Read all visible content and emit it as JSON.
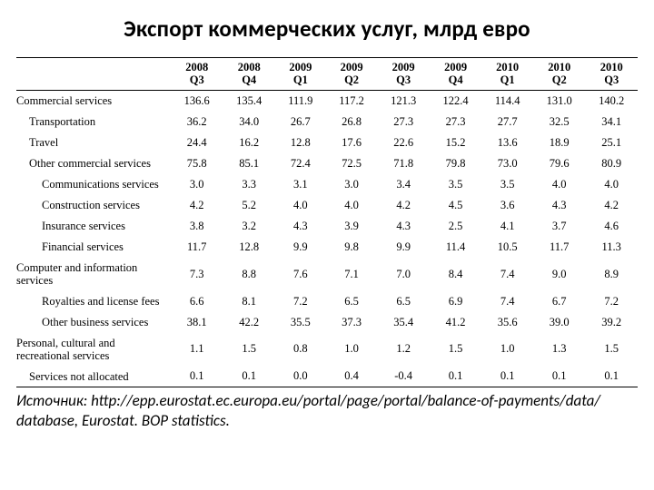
{
  "title": "Экспорт коммерческих услуг, млрд евро",
  "columns": [
    {
      "year": "2008",
      "q": "Q3"
    },
    {
      "year": "2008",
      "q": "Q4"
    },
    {
      "year": "2009",
      "q": "Q1"
    },
    {
      "year": "2009",
      "q": "Q2"
    },
    {
      "year": "2009",
      "q": "Q3"
    },
    {
      "year": "2009",
      "q": "Q4"
    },
    {
      "year": "2010",
      "q": "Q1"
    },
    {
      "year": "2010",
      "q": "Q2"
    },
    {
      "year": "2010",
      "q": "Q3"
    }
  ],
  "rows": [
    {
      "label": "Commercial services",
      "indent": 0,
      "vals": [
        "136.6",
        "135.4",
        "111.9",
        "117.2",
        "121.3",
        "122.4",
        "114.4",
        "131.0",
        "140.2"
      ]
    },
    {
      "label": "Transportation",
      "indent": 1,
      "vals": [
        "36.2",
        "34.0",
        "26.7",
        "26.8",
        "27.3",
        "27.3",
        "27.7",
        "32.5",
        "34.1"
      ]
    },
    {
      "label": "Travel",
      "indent": 1,
      "vals": [
        "24.4",
        "16.2",
        "12.8",
        "17.6",
        "22.6",
        "15.2",
        "13.6",
        "18.9",
        "25.1"
      ]
    },
    {
      "label": "Other commercial services",
      "indent": 1,
      "vals": [
        "75.8",
        "85.1",
        "72.4",
        "72.5",
        "71.8",
        "79.8",
        "73.0",
        "79.6",
        "80.9"
      ]
    },
    {
      "label": "Communications services",
      "indent": 2,
      "vals": [
        "3.0",
        "3.3",
        "3.1",
        "3.0",
        "3.4",
        "3.5",
        "3.5",
        "4.0",
        "4.0"
      ]
    },
    {
      "label": "Construction services",
      "indent": 2,
      "vals": [
        "4.2",
        "5.2",
        "4.0",
        "4.0",
        "4.2",
        "4.5",
        "3.6",
        "4.3",
        "4.2"
      ]
    },
    {
      "label": "Insurance services",
      "indent": 2,
      "vals": [
        "3.8",
        "3.2",
        "4.3",
        "3.9",
        "4.3",
        "2.5",
        "4.1",
        "3.7",
        "4.6"
      ]
    },
    {
      "label": "Financial services",
      "indent": 2,
      "vals": [
        "11.7",
        "12.8",
        "9.9",
        "9.8",
        "9.9",
        "11.4",
        "10.5",
        "11.7",
        "11.3"
      ]
    },
    {
      "label": "Computer and information services",
      "indent": 3,
      "vals": [
        "7.3",
        "8.8",
        "7.6",
        "7.1",
        "7.0",
        "8.4",
        "7.4",
        "9.0",
        "8.9"
      ]
    },
    {
      "label": "Royalties and license fees",
      "indent": 2,
      "vals": [
        "6.6",
        "8.1",
        "7.2",
        "6.5",
        "6.5",
        "6.9",
        "7.4",
        "6.7",
        "7.2"
      ]
    },
    {
      "label": "Other business services",
      "indent": 2,
      "vals": [
        "38.1",
        "42.2",
        "35.5",
        "37.3",
        "35.4",
        "41.2",
        "35.6",
        "39.0",
        "39.2"
      ]
    },
    {
      "label": "Personal, cultural and recreational   services",
      "indent": 0,
      "vals": [
        "1.1",
        "1.5",
        "0.8",
        "1.0",
        "1.2",
        "1.5",
        "1.0",
        "1.3",
        "1.5"
      ]
    },
    {
      "label": "Services not allocated",
      "indent": 1,
      "vals": [
        "0.1",
        "0.1",
        "0.0",
        "0.4",
        "-0.4",
        "0.1",
        "0.1",
        "0.1",
        "0.1"
      ]
    }
  ],
  "source_prefix": "Источник: ",
  "source_rest": "http://epp.eurostat.ec.europa.eu/portal/page/portal/balance-of-payments/data/ database, Eurostat. BOP statistics."
}
